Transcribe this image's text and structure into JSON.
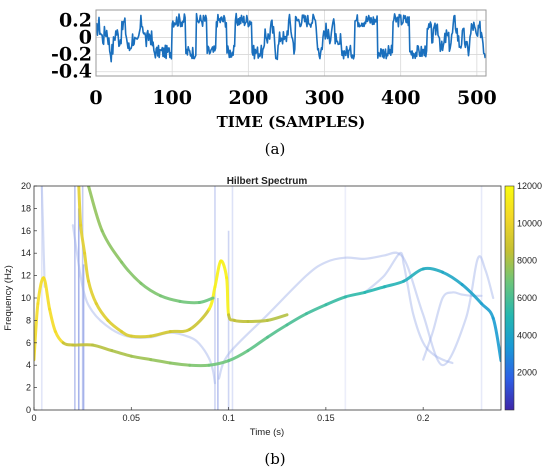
{
  "figure": {
    "panel_a_label": "(a)",
    "panel_b_label": "(b)"
  },
  "chart_data": [
    {
      "type": "line",
      "panel": "a",
      "title": "",
      "xlabel": "TIME (SAMPLES)",
      "ylabel": "",
      "xlim": [
        0,
        512
      ],
      "ylim": [
        -0.45,
        0.32
      ],
      "x_ticks": [
        "0",
        "100",
        "200",
        "300",
        "400",
        "500"
      ],
      "y_ticks": [
        "0.2",
        "0",
        "-0.2",
        "-0.4"
      ],
      "grid": true,
      "line_color": "#1a6fbd",
      "signal_levels": {
        "high": 0.2,
        "low": -0.17
      },
      "segments": [
        {
          "x_start": 0,
          "x_end": 78,
          "level": "mixed"
        },
        {
          "x_start": 78,
          "x_end": 100,
          "level": "low"
        },
        {
          "x_start": 100,
          "x_end": 118,
          "level": "high"
        },
        {
          "x_start": 118,
          "x_end": 132,
          "level": "low"
        },
        {
          "x_start": 132,
          "x_end": 146,
          "level": "high"
        },
        {
          "x_start": 146,
          "x_end": 158,
          "level": "low"
        },
        {
          "x_start": 158,
          "x_end": 172,
          "level": "high"
        },
        {
          "x_start": 172,
          "x_end": 183,
          "level": "low"
        },
        {
          "x_start": 183,
          "x_end": 205,
          "level": "high"
        },
        {
          "x_start": 205,
          "x_end": 222,
          "level": "low"
        },
        {
          "x_start": 222,
          "x_end": 262,
          "level": "mixed"
        },
        {
          "x_start": 262,
          "x_end": 290,
          "level": "high"
        },
        {
          "x_start": 290,
          "x_end": 322,
          "level": "mixed"
        },
        {
          "x_start": 322,
          "x_end": 340,
          "level": "low"
        },
        {
          "x_start": 340,
          "x_end": 370,
          "level": "high"
        },
        {
          "x_start": 370,
          "x_end": 390,
          "level": "low"
        },
        {
          "x_start": 390,
          "x_end": 412,
          "level": "high"
        },
        {
          "x_start": 412,
          "x_end": 430,
          "level": "low"
        },
        {
          "x_start": 430,
          "x_end": 512,
          "level": "mixed"
        }
      ]
    },
    {
      "type": "line",
      "panel": "b",
      "title": "Hilbert Spectrum",
      "xlabel": "Time (s)",
      "ylabel": "Frequency (Hz)",
      "xlim": [
        0,
        0.24
      ],
      "ylim": [
        0,
        20
      ],
      "x_ticks": [
        "0",
        "0.05",
        "0.1",
        "0.15",
        "0.2"
      ],
      "y_ticks": [
        "0",
        "2",
        "4",
        "6",
        "8",
        "10",
        "12",
        "14",
        "16",
        "18",
        "20"
      ],
      "grid": false,
      "colorbar": {
        "range": [
          0,
          12000
        ],
        "ticks": [
          "2000",
          "4000",
          "6000",
          "8000",
          "10000",
          "12000"
        ],
        "colors": [
          "#3e26a8",
          "#2e5fe5",
          "#1a99d6",
          "#25b7b0",
          "#6cc57b",
          "#c4c033",
          "#f3d828",
          "#f9fb0e"
        ]
      },
      "series": [
        {
          "color_value": 9000,
          "x": [
            0,
            0.002,
            0.005,
            0.008,
            0.011,
            0.015,
            0.02,
            0.03,
            0.04,
            0.05,
            0.06,
            0.07,
            0.08,
            0.09,
            0.1,
            0.11,
            0.12,
            0.13,
            0.14,
            0.15,
            0.16,
            0.17,
            0.18,
            0.19,
            0.2,
            0.21,
            0.22,
            0.23,
            0.236,
            0.24
          ],
          "y": [
            4.5,
            9.5,
            11.8,
            9.0,
            7.0,
            6.0,
            5.8,
            5.8,
            5.3,
            4.8,
            4.5,
            4.2,
            4.0,
            4.0,
            4.4,
            5.3,
            6.5,
            7.6,
            8.6,
            9.4,
            10.1,
            10.5,
            11.0,
            11.5,
            12.6,
            12.3,
            11.2,
            9.5,
            8.2,
            4.4
          ]
        },
        {
          "color_value": 10000,
          "x": [
            0.023,
            0.024,
            0.026,
            0.028,
            0.032,
            0.038,
            0.045,
            0.05,
            0.06,
            0.07,
            0.08,
            0.09,
            0.093,
            0.096,
            0.099,
            0.1,
            0.103,
            0.11,
            0.12,
            0.13
          ],
          "y": [
            20,
            16.5,
            14.0,
            11.5,
            9.5,
            8.0,
            7.0,
            6.6,
            6.6,
            7.0,
            7.2,
            9.0,
            11.0,
            13.3,
            11.8,
            8.5,
            8.0,
            7.9,
            8.0,
            8.5
          ]
        },
        {
          "color_value": 8000,
          "x": [
            0.028,
            0.035,
            0.045,
            0.055,
            0.065,
            0.075,
            0.085,
            0.092
          ],
          "y": [
            20,
            16.0,
            13.2,
            11.3,
            10.2,
            9.7,
            9.6,
            10.0
          ]
        }
      ],
      "faint_series": [
        {
          "x": [
            0.02,
            0.025,
            0.03,
            0.04,
            0.05,
            0.06,
            0.07,
            0.08,
            0.085,
            0.09,
            0.092,
            0.093
          ],
          "y": [
            16.5,
            11.0,
            8.8,
            7.2,
            6.5,
            6.5,
            6.9,
            6.5,
            5.9,
            4.6,
            3.5,
            2.4
          ]
        },
        {
          "x": [
            0.095,
            0.1,
            0.12,
            0.14,
            0.15,
            0.16,
            0.17,
            0.18,
            0.187,
            0.192,
            0.2,
            0.21,
            0.222,
            0.228,
            0.232,
            0.236
          ],
          "y": [
            2.8,
            5.0,
            8.5,
            12.0,
            13.2,
            13.6,
            13.5,
            13.8,
            14.0,
            12.8,
            8.5,
            4.0,
            8.2,
            13.5,
            12.5,
            10.0
          ]
        },
        {
          "x": [
            0.17,
            0.18,
            0.188,
            0.19,
            0.192,
            0.195,
            0.2,
            0.205,
            0.21,
            0.215
          ],
          "y": [
            10.5,
            12.0,
            14.0,
            13.0,
            11.2,
            8.5,
            6.0,
            5.0,
            4.5,
            4.2
          ]
        },
        {
          "x": [
            0.2,
            0.205,
            0.21,
            0.215,
            0.22,
            0.225,
            0.23
          ],
          "y": [
            4.5,
            7.0,
            10.0,
            10.5,
            10.3,
            10.2,
            10.2
          ]
        },
        {
          "x": [
            0.004,
            0.0045,
            0.005,
            0.0055
          ],
          "y": [
            20,
            17.0,
            14.0,
            11.0
          ]
        }
      ],
      "vertical_spikes": [
        {
          "x": 0.021,
          "y_top": 20,
          "strength": 0.7
        },
        {
          "x": 0.023,
          "y_top": 18,
          "strength": 0.9
        },
        {
          "x": 0.025,
          "y_top": 20,
          "strength": 0.6
        },
        {
          "x": 0.0255,
          "y_top": 13,
          "strength": 0.8
        },
        {
          "x": 0.093,
          "y_top": 20,
          "strength": 0.5
        },
        {
          "x": 0.0945,
          "y_top": 10,
          "strength": 0.7
        },
        {
          "x": 0.1,
          "y_top": 16,
          "strength": 0.5
        },
        {
          "x": 0.102,
          "y_top": 20,
          "strength": 0.35
        },
        {
          "x": 0.16,
          "y_top": 20,
          "strength": 0.2
        },
        {
          "x": 0.23,
          "y_top": 20,
          "strength": 0.25
        },
        {
          "x": 0.004,
          "y_top": 20,
          "strength": 0.3
        }
      ]
    }
  ]
}
